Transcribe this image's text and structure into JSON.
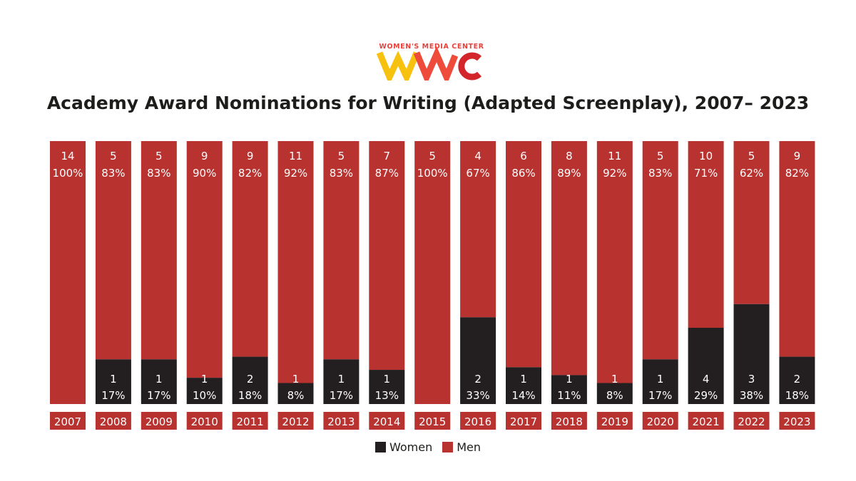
{
  "logo": {
    "text": "WOMEN'S MEDIA CENTER",
    "mark": "WMC"
  },
  "chart_data": {
    "type": "bar",
    "stacked": true,
    "title": "Academy Award Nominations for Writing (Adapted Screenplay), 2007– 2023",
    "categories": [
      "2007",
      "2008",
      "2009",
      "2010",
      "2011",
      "2012",
      "2013",
      "2014",
      "2015",
      "2016",
      "2017",
      "2018",
      "2019",
      "2020",
      "2021",
      "2022",
      "2023"
    ],
    "series": [
      {
        "name": "Women",
        "color": "#231f20",
        "values": [
          0,
          1,
          1,
          1,
          2,
          1,
          1,
          1,
          0,
          2,
          1,
          1,
          1,
          1,
          4,
          3,
          2
        ],
        "percents": [
          0,
          17,
          17,
          10,
          18,
          8,
          17,
          13,
          0,
          33,
          14,
          11,
          8,
          17,
          29,
          38,
          18
        ]
      },
      {
        "name": "Men",
        "color": "#b83230",
        "values": [
          14,
          5,
          5,
          9,
          9,
          11,
          5,
          7,
          5,
          4,
          6,
          8,
          11,
          5,
          10,
          5,
          9
        ],
        "percents": [
          100,
          83,
          83,
          90,
          82,
          92,
          83,
          87,
          100,
          67,
          86,
          89,
          92,
          83,
          71,
          62,
          82
        ]
      }
    ],
    "legend": "bottom-center",
    "ylim": [
      0,
      100
    ]
  }
}
